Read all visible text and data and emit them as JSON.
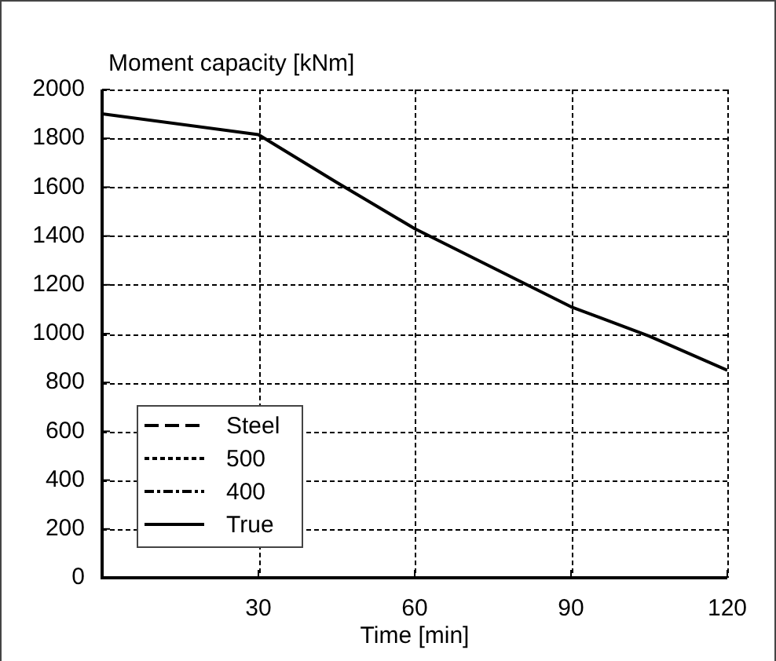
{
  "chart_data": {
    "type": "line",
    "ylabel": "Moment capacity [kNm]",
    "xlabel": "Time [min]",
    "x": [
      0,
      30,
      45,
      60,
      75,
      90,
      105,
      120
    ],
    "series": [
      {
        "name": "Steel",
        "color": "#000000",
        "line_style": "dashed",
        "values": [
          null,
          null,
          null,
          null,
          null,
          null,
          null,
          null
        ]
      },
      {
        "name": "500",
        "color": "#000000",
        "line_style": "dotted",
        "values": [
          null,
          null,
          null,
          null,
          null,
          null,
          null,
          null
        ]
      },
      {
        "name": "400",
        "color": "#000000",
        "line_style": "dashdot",
        "values": [
          null,
          null,
          null,
          null,
          null,
          null,
          null,
          null
        ]
      },
      {
        "name": "True",
        "color": "#000000",
        "line_style": "solid",
        "values": [
          1900,
          1815,
          1620,
          1430,
          1270,
          1110,
          990,
          850
        ]
      }
    ],
    "xlim": [
      0,
      120
    ],
    "xticks": [
      30,
      60,
      90,
      120
    ],
    "ylim": [
      0,
      2000
    ],
    "yticks": [
      0,
      200,
      400,
      600,
      800,
      1000,
      1200,
      1400,
      1600,
      1800,
      2000
    ],
    "grid": true,
    "legend": "bottom left",
    "marker": "none"
  }
}
